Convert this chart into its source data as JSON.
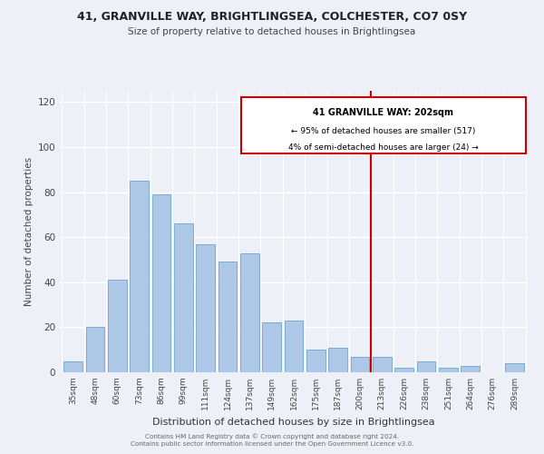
{
  "title1": "41, GRANVILLE WAY, BRIGHTLINGSEA, COLCHESTER, CO7 0SY",
  "title2": "Size of property relative to detached houses in Brightlingsea",
  "xlabel": "Distribution of detached houses by size in Brightlingsea",
  "ylabel": "Number of detached properties",
  "bar_labels": [
    "35sqm",
    "48sqm",
    "60sqm",
    "73sqm",
    "86sqm",
    "99sqm",
    "111sqm",
    "124sqm",
    "137sqm",
    "149sqm",
    "162sqm",
    "175sqm",
    "187sqm",
    "200sqm",
    "213sqm",
    "226sqm",
    "238sqm",
    "251sqm",
    "264sqm",
    "276sqm",
    "289sqm"
  ],
  "bar_values": [
    5,
    20,
    41,
    85,
    79,
    66,
    57,
    49,
    53,
    22,
    23,
    10,
    11,
    7,
    7,
    2,
    5,
    2,
    3,
    0,
    4
  ],
  "bar_color": "#adc8e6",
  "bar_edge_color": "#7aadd4",
  "highlight_bar_index": 13,
  "highlight_color": "#cc0000",
  "annotation_title": "41 GRANVILLE WAY: 202sqm",
  "annotation_line1": "← 95% of detached houses are smaller (517)",
  "annotation_line2": "4% of semi-detached houses are larger (24) →",
  "annotation_box_edge": "#cc0000",
  "ylim": [
    0,
    125
  ],
  "yticks": [
    0,
    20,
    40,
    60,
    80,
    100,
    120
  ],
  "footer1": "Contains HM Land Registry data © Crown copyright and database right 2024.",
  "footer2": "Contains public sector information licensed under the Open Government Licence v3.0.",
  "bg_color": "#edf1f7",
  "grid_color": "#ffffff"
}
